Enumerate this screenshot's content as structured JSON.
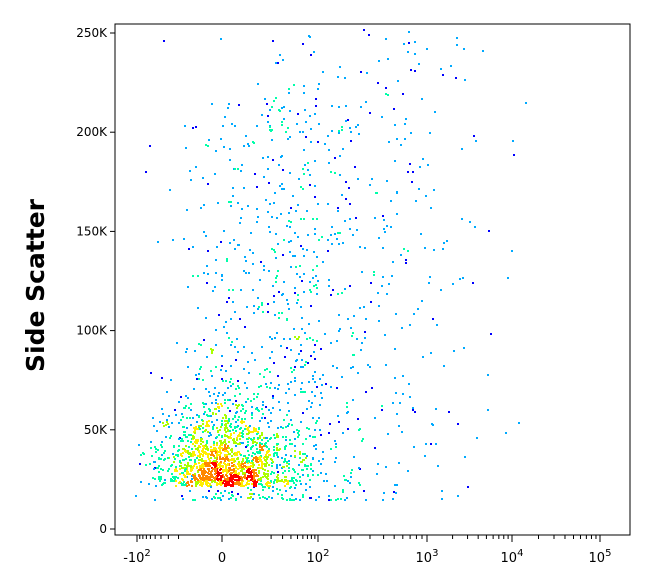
{
  "chart_data": {
    "type": "scatter",
    "style": "density-dot-plot",
    "title": "",
    "ylabel": "Side Scatter",
    "xlabel": "",
    "x_scale": "biexponential",
    "y_scale": "linear",
    "ylim": [
      0,
      262144
    ],
    "y_ticks": [
      {
        "value": 0,
        "label": "0"
      },
      {
        "value": 50000,
        "label": "50K"
      },
      {
        "value": 100000,
        "label": "100K"
      },
      {
        "value": 150000,
        "label": "150K"
      },
      {
        "value": 200000,
        "label": "200K"
      },
      {
        "value": 250000,
        "label": "250K"
      }
    ],
    "x_ticks": [
      {
        "value": -100,
        "base": "-10",
        "exp": "2"
      },
      {
        "value": 0,
        "base": "0",
        "exp": ""
      },
      {
        "value": 100,
        "base": "10",
        "exp": "2"
      },
      {
        "value": 1000,
        "base": "10",
        "exp": "3"
      },
      {
        "value": 10000,
        "base": "10",
        "exp": "4"
      },
      {
        "value": 100000,
        "base": "10",
        "exp": "5"
      }
    ],
    "color_scale": [
      "#0000ff",
      "#00aaff",
      "#00ffaa",
      "#aaff00",
      "#ffee00",
      "#ff8800",
      "#ff0000"
    ],
    "density_regions": [
      {
        "level": "highest",
        "x_range": [
          -30,
          30
        ],
        "y_range": [
          15000,
          35000
        ]
      },
      {
        "level": "high",
        "x_range": [
          -60,
          60
        ],
        "y_range": [
          10000,
          60000
        ]
      },
      {
        "level": "medium",
        "x_range": [
          -80,
          150
        ],
        "y_range": [
          5000,
          160000
        ]
      },
      {
        "level": "low",
        "x_range": [
          -120,
          3000
        ],
        "y_range": [
          0,
          262144
        ]
      }
    ],
    "grid": false,
    "legend": "none"
  }
}
